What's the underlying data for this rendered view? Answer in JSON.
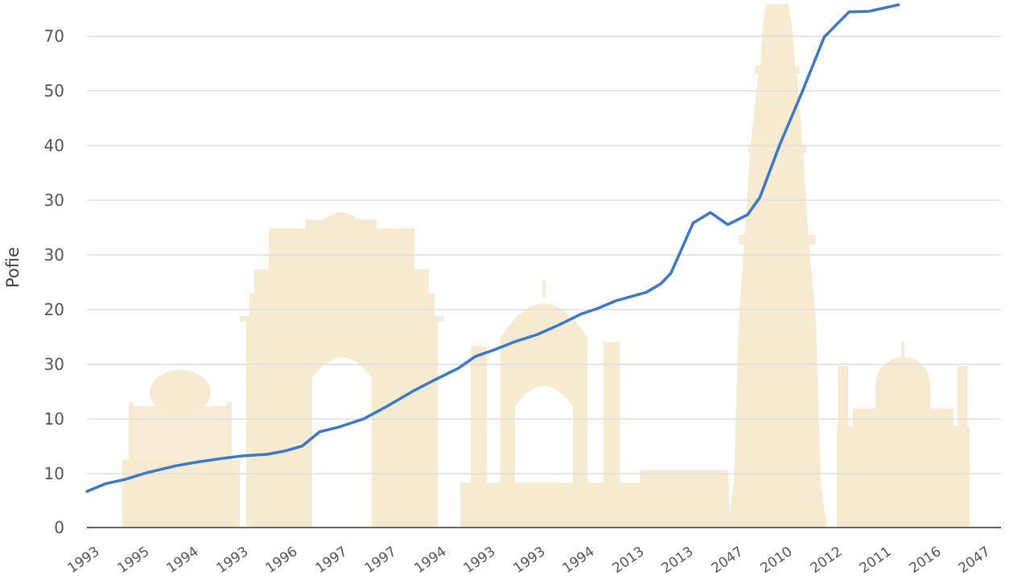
{
  "chart_data": {
    "type": "line",
    "title": "",
    "xlabel": "",
    "ylabel": "Pofie",
    "grid": true,
    "legend": null,
    "colors": {
      "line": "#3a78c9",
      "grid": "#dddddd",
      "axis": "#666666",
      "silhouette": "#f6ead0",
      "tick_text": "#555555"
    },
    "y_ticks": [
      "70",
      "50",
      "40",
      "30",
      "30",
      "20",
      "30",
      "10",
      "10",
      "0"
    ],
    "x_ticks": [
      "1993",
      "1995",
      "1994",
      "1993",
      "1996",
      "1997",
      "1997",
      "1994",
      "1993",
      "1993",
      "1994",
      "2013",
      "2013",
      "2047",
      "2010",
      "2012",
      "2011",
      "2016",
      "2047"
    ],
    "note": "y values expressed on linear grid scale where 0 = baseline and each gridline = 1 step of 10 (top gridline = 90)",
    "ylim": [
      0,
      96
    ],
    "series": [
      {
        "name": "Pofie",
        "x_index": [
          0,
          0.37,
          0.77,
          1.2,
          1.8,
          2.25,
          2.7,
          3.15,
          3.65,
          4.0,
          4.35,
          4.7,
          5.1,
          5.6,
          6.05,
          6.6,
          7.05,
          7.5,
          7.85,
          8.2,
          8.65,
          9.1,
          9.55,
          10.0,
          10.3,
          10.7,
          11.3,
          11.6,
          11.8,
          12.25,
          12.6,
          12.95,
          13.35,
          13.6,
          14.0,
          14.45,
          14.9,
          15.4,
          15.8,
          16.4
        ],
        "values": [
          6.6,
          8.0,
          8.8,
          10.0,
          11.3,
          12.0,
          12.6,
          13.1,
          13.4,
          14.0,
          14.9,
          17.5,
          18.4,
          19.9,
          22.1,
          25.0,
          27.1,
          29.1,
          31.3,
          32.4,
          34.0,
          35.3,
          37.1,
          39.1,
          40.0,
          41.5,
          43.0,
          44.6,
          46.5,
          55.7,
          57.6,
          55.4,
          57.2,
          60.4,
          70.0,
          79.6,
          89.7,
          94.3,
          94.4,
          95.6
        ]
      }
    ]
  }
}
